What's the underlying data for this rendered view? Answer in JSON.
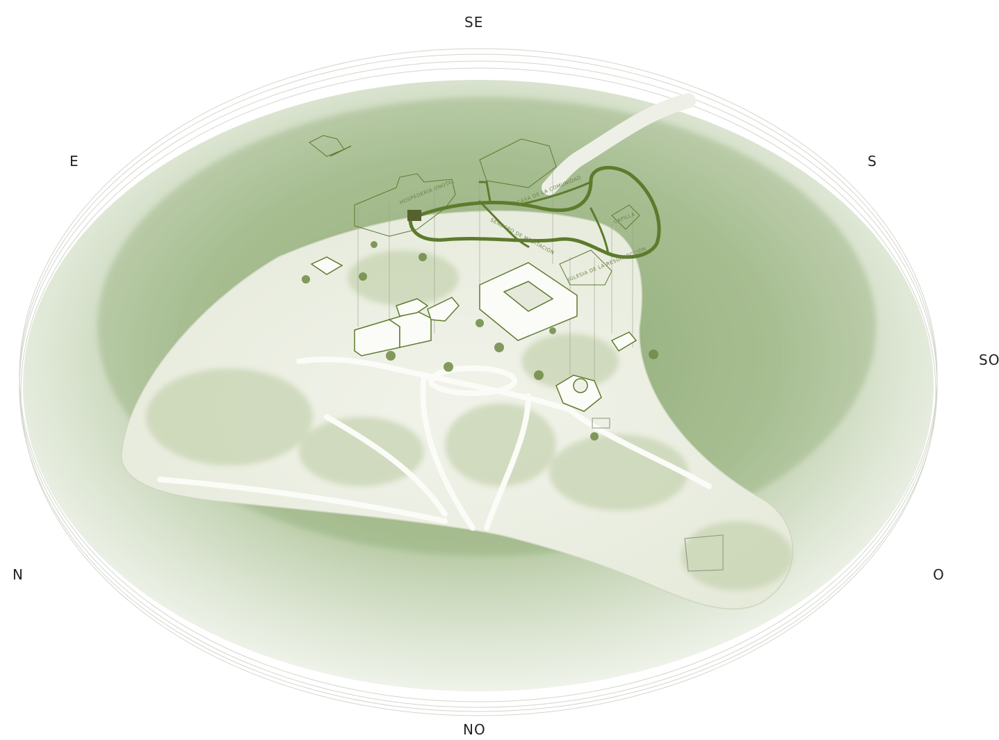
{
  "compass": {
    "se": "SE",
    "e": "E",
    "s": "S",
    "so": "SO",
    "n": "N",
    "o": "O",
    "no": "NO"
  },
  "buildings": {
    "hospederia": "HOSPEDERÍA ONOTAL",
    "casa_comunidad": "CASA DE LA COMUNIDAD",
    "iglesia": "IGLESIA DE LA RESURRECCIÓN",
    "capilla": "CAPILLA",
    "sendero": "SENDERO DE MEDITACIÓN"
  },
  "colors": {
    "accent": "#5e7a2c",
    "terrain": "#9fb98a",
    "ground": "#eef1e6"
  }
}
